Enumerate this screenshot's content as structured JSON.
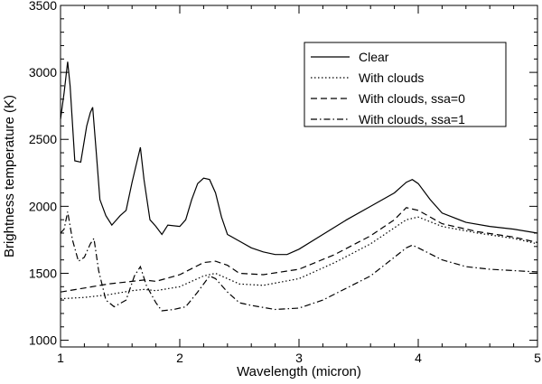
{
  "chart_data": {
    "type": "line",
    "xlabel": "Wavelength (micron)",
    "ylabel": "Brightness temperature (K)",
    "xlim": [
      1,
      5
    ],
    "ylim": [
      950,
      3500
    ],
    "xticks": [
      1,
      2,
      3,
      4,
      5
    ],
    "yticks": [
      1000,
      1500,
      2000,
      2500,
      3000,
      3500
    ],
    "grid": false,
    "legend_position": "top-right",
    "series": [
      {
        "name": "Clear",
        "style": "solid",
        "x": [
          1.0,
          1.03,
          1.06,
          1.08,
          1.12,
          1.17,
          1.22,
          1.25,
          1.27,
          1.3,
          1.33,
          1.38,
          1.43,
          1.5,
          1.55,
          1.6,
          1.64,
          1.67,
          1.7,
          1.75,
          1.8,
          1.85,
          1.9,
          2.0,
          2.05,
          2.1,
          2.15,
          2.2,
          2.25,
          2.3,
          2.35,
          2.4,
          2.5,
          2.6,
          2.7,
          2.8,
          2.9,
          3.0,
          3.2,
          3.4,
          3.6,
          3.8,
          3.9,
          3.95,
          4.0,
          4.1,
          4.2,
          4.4,
          4.6,
          4.8,
          5.0
        ],
        "y": [
          2650,
          2850,
          3080,
          2900,
          2340,
          2330,
          2600,
          2700,
          2740,
          2400,
          2050,
          1930,
          1860,
          1930,
          1970,
          2180,
          2330,
          2440,
          2200,
          1900,
          1850,
          1790,
          1860,
          1850,
          1900,
          2050,
          2170,
          2210,
          2200,
          2100,
          1920,
          1790,
          1740,
          1690,
          1660,
          1640,
          1640,
          1680,
          1790,
          1900,
          2000,
          2100,
          2180,
          2200,
          2170,
          2050,
          1950,
          1880,
          1850,
          1830,
          1800
        ]
      },
      {
        "name": "With clouds",
        "style": "dotted",
        "x": [
          1.0,
          1.2,
          1.4,
          1.6,
          1.7,
          1.8,
          2.0,
          2.2,
          2.3,
          2.4,
          2.5,
          2.7,
          3.0,
          3.3,
          3.6,
          3.8,
          3.9,
          4.0,
          4.2,
          4.5,
          4.8,
          5.0
        ],
        "y": [
          1310,
          1320,
          1340,
          1370,
          1380,
          1370,
          1400,
          1480,
          1500,
          1460,
          1420,
          1410,
          1460,
          1580,
          1720,
          1840,
          1900,
          1920,
          1850,
          1800,
          1760,
          1720
        ]
      },
      {
        "name": "With clouds, ssa=0",
        "style": "dashed",
        "x": [
          1.0,
          1.2,
          1.4,
          1.6,
          1.7,
          1.8,
          2.0,
          2.2,
          2.3,
          2.4,
          2.5,
          2.7,
          3.0,
          3.3,
          3.6,
          3.8,
          3.9,
          4.0,
          4.2,
          4.5,
          4.8,
          5.0
        ],
        "y": [
          1360,
          1390,
          1420,
          1440,
          1450,
          1440,
          1490,
          1580,
          1590,
          1560,
          1500,
          1490,
          1530,
          1640,
          1780,
          1900,
          1990,
          1970,
          1870,
          1810,
          1770,
          1730
        ]
      },
      {
        "name": "With clouds, ssa=1",
        "style": "dashdot",
        "x": [
          1.0,
          1.03,
          1.06,
          1.1,
          1.15,
          1.2,
          1.25,
          1.28,
          1.32,
          1.38,
          1.45,
          1.55,
          1.62,
          1.67,
          1.72,
          1.8,
          1.85,
          1.95,
          2.05,
          2.15,
          2.25,
          2.3,
          2.4,
          2.5,
          2.6,
          2.8,
          3.0,
          3.2,
          3.4,
          3.6,
          3.8,
          3.9,
          3.95,
          4.0,
          4.2,
          4.4,
          4.6,
          4.8,
          5.0
        ],
        "y": [
          1800,
          1830,
          1960,
          1750,
          1590,
          1620,
          1720,
          1760,
          1520,
          1300,
          1250,
          1300,
          1480,
          1550,
          1410,
          1280,
          1220,
          1230,
          1250,
          1360,
          1480,
          1460,
          1360,
          1280,
          1260,
          1230,
          1240,
          1300,
          1390,
          1480,
          1620,
          1690,
          1710,
          1690,
          1600,
          1550,
          1530,
          1520,
          1510
        ]
      }
    ]
  }
}
